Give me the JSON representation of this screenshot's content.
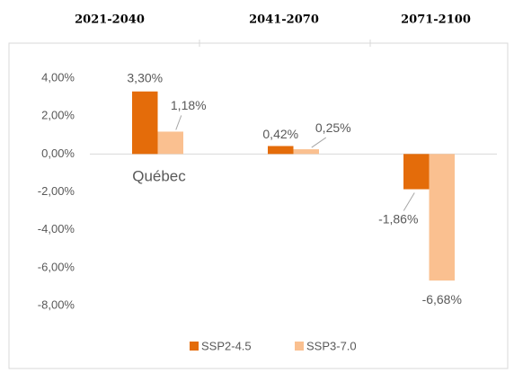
{
  "chart_data": {
    "type": "bar",
    "categories": [
      "2021-2040",
      "2041-2070",
      "2071-2100"
    ],
    "series": [
      {
        "name": "SSP2-4.5",
        "color": "#e46c0a",
        "values": [
          3.3,
          0.42,
          -1.86
        ],
        "value_labels": [
          "3,30%",
          "0,42%",
          "-1,86%"
        ]
      },
      {
        "name": "SSP3-7.0",
        "color": "#fac090",
        "values": [
          1.18,
          0.25,
          -6.68
        ],
        "value_labels": [
          "1,18%",
          "0,25%",
          "-6,68%"
        ]
      }
    ],
    "annotation": "Québec",
    "ylim": [
      -8,
      4
    ],
    "yticks": [
      {
        "value": 4,
        "label": "4,00%"
      },
      {
        "value": 2,
        "label": "2,00%"
      },
      {
        "value": 0,
        "label": "0,00%"
      },
      {
        "value": -2,
        "label": "-2,00%"
      },
      {
        "value": -4,
        "label": "-4,00%"
      },
      {
        "value": -6,
        "label": "-6,00%"
      },
      {
        "value": -8,
        "label": "-8,00%"
      }
    ],
    "grid": false,
    "legend": "bottom"
  }
}
